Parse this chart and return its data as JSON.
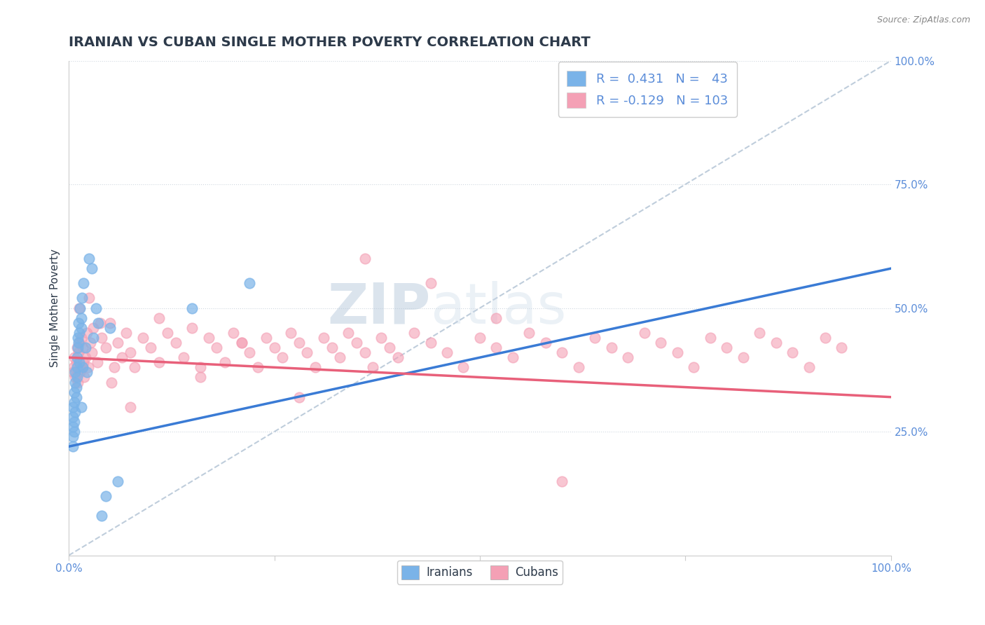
{
  "title": "IRANIAN VS CUBAN SINGLE MOTHER POVERTY CORRELATION CHART",
  "source": "Source: ZipAtlas.com",
  "ylabel": "Single Mother Poverty",
  "xlim": [
    0,
    1
  ],
  "ylim": [
    0,
    1
  ],
  "title_color": "#2d3a4a",
  "title_fontsize": 14,
  "axis_color": "#5b8dd9",
  "iranian_color": "#7ab3e8",
  "cuban_color": "#f4a0b5",
  "iranian_trend_color": "#3a7bd5",
  "cuban_trend_color": "#e8607a",
  "ref_line_color": "#b8c8d8",
  "legend_R1": "0.431",
  "legend_N1": "43",
  "legend_R2": "-0.129",
  "legend_N2": "103",
  "watermark_zip": "ZIP",
  "watermark_atlas": "atlas",
  "iranians_x": [
    0.005,
    0.005,
    0.005,
    0.005,
    0.005,
    0.007,
    0.007,
    0.007,
    0.007,
    0.008,
    0.008,
    0.008,
    0.009,
    0.009,
    0.01,
    0.01,
    0.01,
    0.011,
    0.011,
    0.012,
    0.012,
    0.013,
    0.013,
    0.014,
    0.015,
    0.015,
    0.015,
    0.016,
    0.017,
    0.018,
    0.02,
    0.022,
    0.025,
    0.028,
    0.03,
    0.033,
    0.036,
    0.04,
    0.045,
    0.05,
    0.06,
    0.15,
    0.22
  ],
  "iranians_y": [
    0.28,
    0.24,
    0.3,
    0.26,
    0.22,
    0.33,
    0.31,
    0.27,
    0.25,
    0.35,
    0.29,
    0.37,
    0.34,
    0.32,
    0.4,
    0.36,
    0.38,
    0.44,
    0.42,
    0.47,
    0.43,
    0.39,
    0.45,
    0.5,
    0.48,
    0.46,
    0.3,
    0.52,
    0.38,
    0.55,
    0.42,
    0.37,
    0.6,
    0.58,
    0.44,
    0.5,
    0.47,
    0.08,
    0.12,
    0.46,
    0.15,
    0.5,
    0.55
  ],
  "cubans_x": [
    0.005,
    0.006,
    0.007,
    0.008,
    0.009,
    0.01,
    0.011,
    0.012,
    0.013,
    0.014,
    0.015,
    0.016,
    0.017,
    0.018,
    0.019,
    0.02,
    0.022,
    0.024,
    0.026,
    0.028,
    0.03,
    0.035,
    0.04,
    0.045,
    0.05,
    0.055,
    0.06,
    0.065,
    0.07,
    0.075,
    0.08,
    0.09,
    0.1,
    0.11,
    0.12,
    0.13,
    0.14,
    0.15,
    0.16,
    0.17,
    0.18,
    0.19,
    0.2,
    0.21,
    0.22,
    0.23,
    0.24,
    0.25,
    0.26,
    0.27,
    0.28,
    0.29,
    0.3,
    0.31,
    0.32,
    0.33,
    0.34,
    0.35,
    0.36,
    0.37,
    0.38,
    0.39,
    0.4,
    0.42,
    0.44,
    0.46,
    0.48,
    0.5,
    0.52,
    0.54,
    0.56,
    0.58,
    0.6,
    0.62,
    0.64,
    0.66,
    0.68,
    0.7,
    0.72,
    0.74,
    0.76,
    0.78,
    0.8,
    0.82,
    0.84,
    0.86,
    0.88,
    0.9,
    0.92,
    0.94,
    0.013,
    0.025,
    0.038,
    0.052,
    0.075,
    0.11,
    0.16,
    0.21,
    0.28,
    0.36,
    0.44,
    0.52,
    0.6
  ],
  "cubans_y": [
    0.37,
    0.38,
    0.4,
    0.36,
    0.39,
    0.42,
    0.35,
    0.41,
    0.43,
    0.37,
    0.44,
    0.38,
    0.42,
    0.39,
    0.36,
    0.4,
    0.45,
    0.38,
    0.43,
    0.41,
    0.46,
    0.39,
    0.44,
    0.42,
    0.47,
    0.38,
    0.43,
    0.4,
    0.45,
    0.41,
    0.38,
    0.44,
    0.42,
    0.39,
    0.45,
    0.43,
    0.4,
    0.46,
    0.38,
    0.44,
    0.42,
    0.39,
    0.45,
    0.43,
    0.41,
    0.38,
    0.44,
    0.42,
    0.4,
    0.45,
    0.43,
    0.41,
    0.38,
    0.44,
    0.42,
    0.4,
    0.45,
    0.43,
    0.41,
    0.38,
    0.44,
    0.42,
    0.4,
    0.45,
    0.43,
    0.41,
    0.38,
    0.44,
    0.42,
    0.4,
    0.45,
    0.43,
    0.41,
    0.38,
    0.44,
    0.42,
    0.4,
    0.45,
    0.43,
    0.41,
    0.38,
    0.44,
    0.42,
    0.4,
    0.45,
    0.43,
    0.41,
    0.38,
    0.44,
    0.42,
    0.5,
    0.52,
    0.47,
    0.35,
    0.3,
    0.48,
    0.36,
    0.43,
    0.32,
    0.6,
    0.55,
    0.48,
    0.15
  ],
  "iranian_trend_x": [
    0.0,
    1.0
  ],
  "iranian_trend_y": [
    0.22,
    0.58
  ],
  "cuban_trend_x": [
    0.0,
    1.0
  ],
  "cuban_trend_y": [
    0.4,
    0.32
  ]
}
